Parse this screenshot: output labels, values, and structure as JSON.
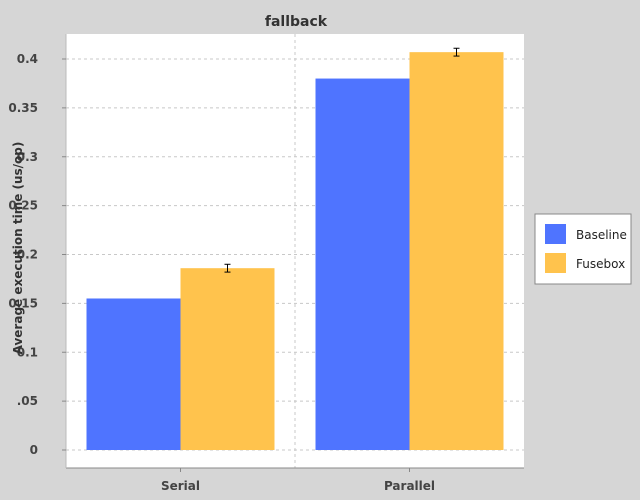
{
  "chart_data": {
    "type": "bar",
    "title": "fallback",
    "xlabel": "",
    "ylabel": "Average execution time (us/op)",
    "categories": [
      "Serial",
      "Parallel"
    ],
    "series": [
      {
        "name": "Baseline",
        "values": [
          0.155,
          0.38
        ],
        "color": "#4f74ff"
      },
      {
        "name": "Fusebox",
        "values": [
          0.186,
          0.407
        ],
        "errors": [
          0.004,
          0.004
        ],
        "color": "#ffc34d"
      }
    ],
    "ylim": [
      0,
      0.4
    ],
    "yticks": [
      0,
      0.05,
      0.1,
      0.15,
      0.2,
      0.25,
      0.3,
      0.35,
      0.4
    ],
    "ytick_labels": [
      "0",
      ".05",
      "0.1",
      "0.15",
      "0.2",
      "0.25",
      "0.3",
      "0.35",
      "0.4"
    ],
    "grid": true,
    "legend": "right",
    "colors": {
      "background": "#d6d6d6",
      "plot_background": "#ffffff",
      "grid": "#c8c8c8"
    }
  }
}
